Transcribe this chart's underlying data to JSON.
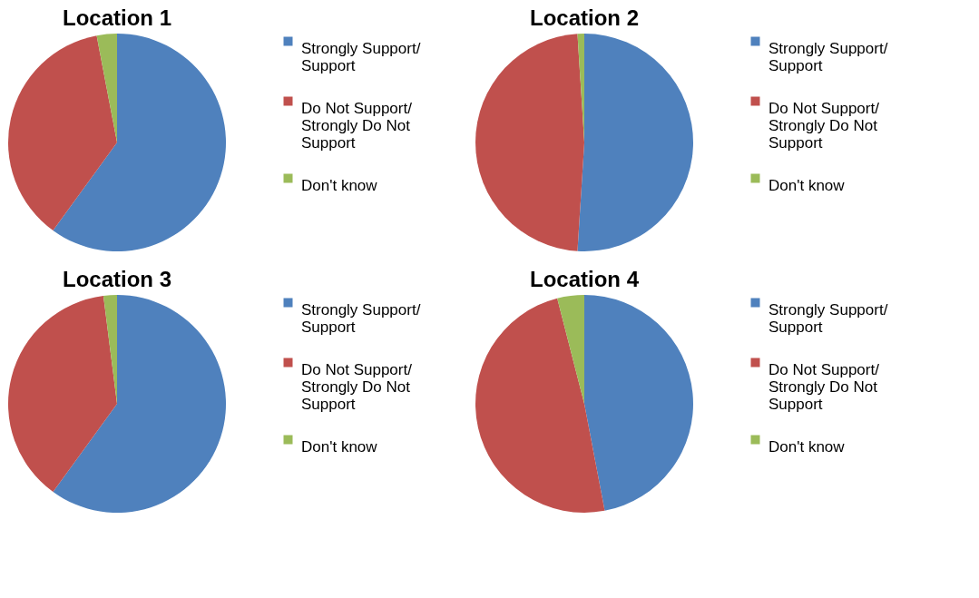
{
  "chart_data": [
    {
      "type": "pie",
      "title": "Location 1",
      "categories": [
        "Strongly Support/\nSupport",
        "Do Not Support/\nStrongly Do Not\nSupport",
        "Don't know"
      ],
      "values": [
        60,
        37,
        3
      ],
      "colors": [
        "#4f81bd",
        "#c0504d",
        "#9bbb59"
      ],
      "legend": "right"
    },
    {
      "type": "pie",
      "title": "Location 2",
      "categories": [
        "Strongly Support/\nSupport",
        "Do Not Support/\nStrongly Do Not\nSupport",
        "Don't know"
      ],
      "values": [
        51,
        48,
        1
      ],
      "colors": [
        "#4f81bd",
        "#c0504d",
        "#9bbb59"
      ],
      "legend": "right"
    },
    {
      "type": "pie",
      "title": "Location 3",
      "categories": [
        "Strongly Support/\nSupport",
        "Do Not Support/\nStrongly Do Not\nSupport",
        "Don't know"
      ],
      "values": [
        60,
        38,
        2
      ],
      "colors": [
        "#4f81bd",
        "#c0504d",
        "#9bbb59"
      ],
      "legend": "right"
    },
    {
      "type": "pie",
      "title": "Location 4",
      "categories": [
        "Strongly Support/\nSupport",
        "Do Not Support/\nStrongly Do Not\nSupport",
        "Don't know"
      ],
      "values": [
        47,
        49,
        4
      ],
      "colors": [
        "#4f81bd",
        "#c0504d",
        "#9bbb59"
      ],
      "legend": "right"
    }
  ]
}
